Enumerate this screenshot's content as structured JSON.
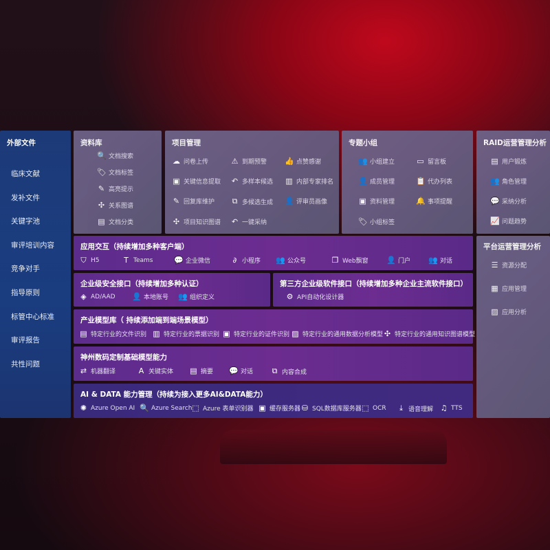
{
  "left": {
    "title": "外部文件",
    "items": [
      "临床文献",
      "发补文件",
      "关键字池",
      "审评培训内容",
      "竞争对手",
      "指导原则",
      "标管中心标准",
      "审评报告",
      "共性问题"
    ]
  },
  "library": {
    "title": "资料库",
    "items": [
      {
        "icon": "doc-search-icon",
        "glyph": "🔍",
        "label": "文档搜索"
      },
      {
        "icon": "tag-icon",
        "glyph": "🏷",
        "label": "文档标签"
      },
      {
        "icon": "pen-icon",
        "glyph": "✎",
        "label": "高亮提示"
      },
      {
        "icon": "graph-icon",
        "glyph": "✣",
        "label": "关系图谱"
      },
      {
        "icon": "folder-icon",
        "glyph": "▤",
        "label": "文档分类"
      }
    ]
  },
  "project": {
    "title": "项目管理",
    "items": [
      {
        "icon": "cloud-upload-icon",
        "glyph": "☁",
        "label": "问卷上传"
      },
      {
        "icon": "alarm-icon",
        "glyph": "⚠",
        "label": "到期预警"
      },
      {
        "icon": "thumbs-up-icon",
        "glyph": "👍",
        "label": "点赞感谢"
      },
      {
        "icon": "extract-icon",
        "glyph": "▣",
        "label": "关键信息提取"
      },
      {
        "icon": "reply-icon",
        "glyph": "↶",
        "label": "多样本候选"
      },
      {
        "icon": "ranking-icon",
        "glyph": "▥",
        "label": "内部专家排名"
      },
      {
        "icon": "edit-icon",
        "glyph": "✎",
        "label": "回复库维护"
      },
      {
        "icon": "puzzle-icon",
        "glyph": "⧉",
        "label": "多候选生成"
      },
      {
        "icon": "person-icon",
        "glyph": "👤",
        "label": "评审员画像"
      },
      {
        "icon": "knowledge-graph-icon",
        "glyph": "✣",
        "label": "项目知识图谱"
      },
      {
        "icon": "reply-icon",
        "glyph": "↶",
        "label": "一键采纳"
      }
    ]
  },
  "group": {
    "title": "专题小组",
    "items": [
      {
        "icon": "team-icon",
        "glyph": "👥",
        "label": "小组建立"
      },
      {
        "icon": "bbs-icon",
        "glyph": "▭",
        "label": "留言板"
      },
      {
        "icon": "member-icon",
        "glyph": "👤",
        "label": "成员管理"
      },
      {
        "icon": "clipboard-icon",
        "glyph": "📋",
        "label": "代办列表"
      },
      {
        "icon": "folder-icon",
        "glyph": "▣",
        "label": "资料管理"
      },
      {
        "icon": "bell-icon",
        "glyph": "🔔",
        "label": "事项提醒"
      },
      {
        "icon": "tag-icon",
        "glyph": "🏷",
        "label": "小组标签"
      }
    ]
  },
  "raid": {
    "title": "RAID运营管理分析",
    "items": [
      {
        "icon": "id-card-icon",
        "glyph": "▤",
        "label": "用户锻炼"
      },
      {
        "icon": "users-icon",
        "glyph": "👥",
        "label": "角色管理"
      },
      {
        "icon": "qa-icon",
        "glyph": "💬",
        "label": "采纳分析"
      },
      {
        "icon": "trend-icon",
        "glyph": "📈",
        "label": "问题趋势"
      }
    ]
  },
  "platform": {
    "title": "平台运营管理分析",
    "items": [
      {
        "icon": "list-icon",
        "glyph": "☰",
        "label": "资源分配"
      },
      {
        "icon": "apps-icon",
        "glyph": "▦",
        "label": "应用管理"
      },
      {
        "icon": "analysis-icon",
        "glyph": "▨",
        "label": "应用分析"
      }
    ]
  },
  "app": {
    "title": "应用交互（持续增加多种客户端）",
    "items": [
      {
        "icon": "html5-icon",
        "glyph": "⛉",
        "label": "H5"
      },
      {
        "icon": "teams-icon",
        "glyph": "T",
        "label": "Teams"
      },
      {
        "icon": "wechat-icon",
        "glyph": "💬",
        "label": "企业微信"
      },
      {
        "icon": "miniprogram-icon",
        "glyph": "∂",
        "label": "小程序"
      },
      {
        "icon": "public-account-icon",
        "glyph": "👥",
        "label": "公众号"
      },
      {
        "icon": "window-icon",
        "glyph": "❐",
        "label": "Web飘窗"
      },
      {
        "icon": "portal-icon",
        "glyph": "👤",
        "label": "门户"
      },
      {
        "icon": "chat-icon",
        "glyph": "👥",
        "label": "对话"
      }
    ]
  },
  "security": {
    "title": "企业级安全接口（持续增加多种认证）",
    "items": [
      {
        "icon": "ad-icon",
        "glyph": "◈",
        "label": "AD/AAD"
      },
      {
        "icon": "local-account-icon",
        "glyph": "👤",
        "label": "本地账号"
      },
      {
        "icon": "org-icon",
        "glyph": "👥",
        "label": "组织定义"
      }
    ]
  },
  "third": {
    "title": "第三方企业级软件接口（持续增加多种企业主流软件接口）",
    "items": [
      {
        "icon": "gear-icon",
        "glyph": "⚙",
        "label": "API自动化设计器"
      }
    ]
  },
  "industry": {
    "title": "产业模型库（ 持续添加端到端场景模型）",
    "items": [
      {
        "icon": "file-icon",
        "glyph": "▤",
        "label": "特定行业的文件识别"
      },
      {
        "icon": "receipt-icon",
        "glyph": "▥",
        "label": "特定行业的票据识别"
      },
      {
        "icon": "id-card-icon",
        "glyph": "▣",
        "label": "特定行业的证件识别"
      },
      {
        "icon": "chart-icon",
        "glyph": "▨",
        "label": "特定行业的通用数据分析模型"
      },
      {
        "icon": "knowledge-graph-icon",
        "glyph": "✣",
        "label": "特定行业的通用知识图谱模型"
      }
    ]
  },
  "base": {
    "title": "神州数码定制基础模型能力",
    "items": [
      {
        "icon": "translate-icon",
        "glyph": "⇄",
        "label": "机器翻译"
      },
      {
        "icon": "entity-icon",
        "glyph": "A",
        "label": "关键实体"
      },
      {
        "icon": "summary-icon",
        "glyph": "▤",
        "label": "摘要"
      },
      {
        "icon": "chat-icon",
        "glyph": "💬",
        "label": "对话"
      },
      {
        "icon": "compose-icon",
        "glyph": "⧉",
        "label": "内容合成"
      }
    ]
  },
  "ai": {
    "title": "AI & DATA 能力管理（持续为接入更多AI&DATA能力）",
    "items": [
      {
        "icon": "openai-icon",
        "glyph": "✺",
        "label": "Azure Open AI"
      },
      {
        "icon": "search-icon",
        "glyph": "🔍",
        "label": "Azure Search"
      },
      {
        "icon": "form-icon",
        "glyph": "⬚",
        "label": "Azure 表单识别器"
      },
      {
        "icon": "cache-icon",
        "glyph": "▣",
        "label": "缓存服务器"
      },
      {
        "icon": "sql-icon",
        "glyph": "⛁",
        "label": "SQL数据库服务器"
      },
      {
        "icon": "ocr-icon",
        "glyph": "⬚",
        "label": "OCR"
      },
      {
        "icon": "speech-icon",
        "glyph": "⤓",
        "label": "语音理解"
      },
      {
        "icon": "tts-icon",
        "glyph": "♫",
        "label": "TTS"
      }
    ]
  }
}
